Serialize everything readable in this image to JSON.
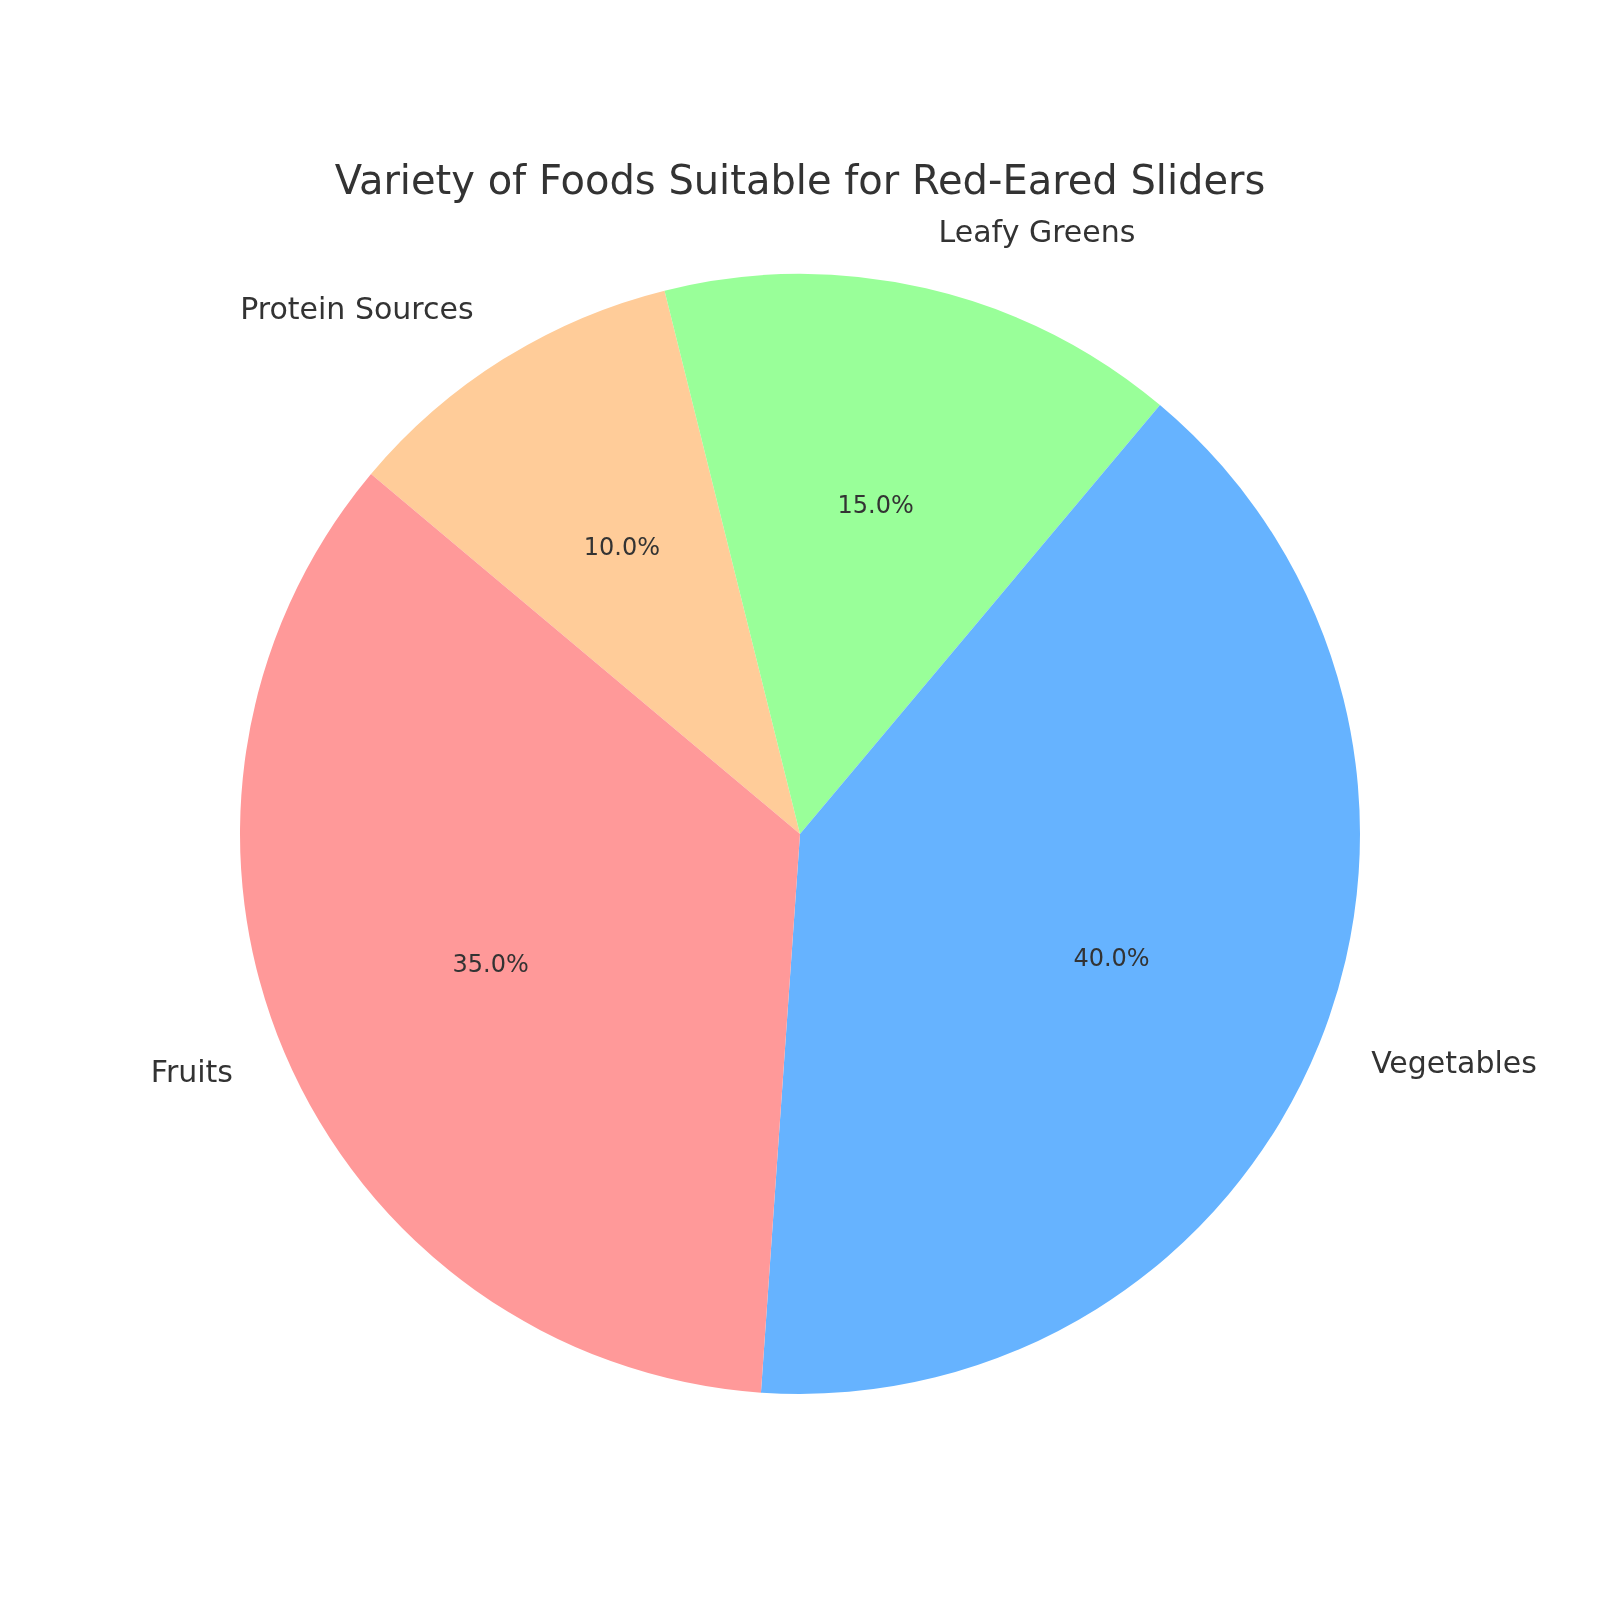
{
  "chart_data": {
    "type": "pie",
    "title": "Variety of Foods Suitable for Red-Eared Sliders",
    "categories": [
      "Protein Sources",
      "Leafy Greens",
      "Vegetables",
      "Fruits"
    ],
    "values": [
      10,
      15,
      40,
      35
    ],
    "colors": [
      "#ffcc99",
      "#99ff99",
      "#66b3ff",
      "#ff9999"
    ],
    "value_labels": [
      "10.0%",
      "15.0%",
      "40.0%",
      "35.0%"
    ],
    "legend": false
  }
}
